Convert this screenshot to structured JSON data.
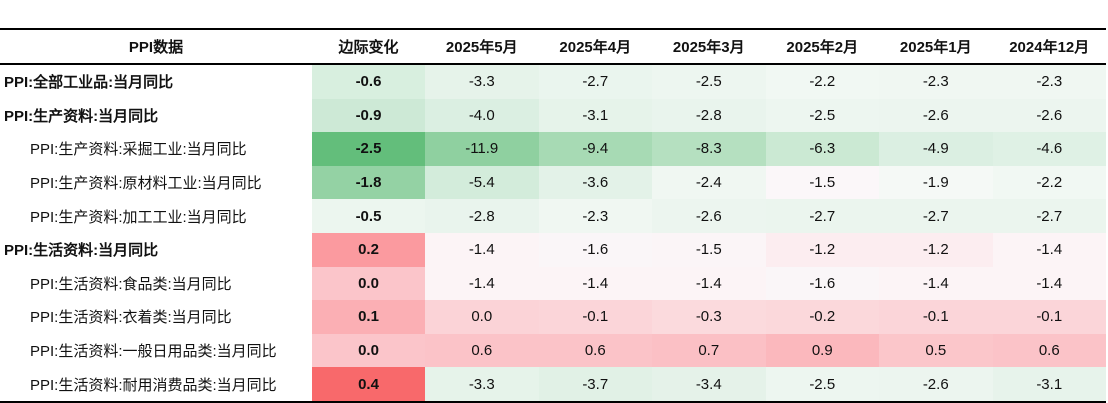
{
  "table": {
    "headers": [
      "PPI数据",
      "边际变化",
      "2025年5月",
      "2025年4月",
      "2025年3月",
      "2025年2月",
      "2025年1月",
      "2024年12月"
    ],
    "rows": [
      {
        "name": "PPI:全部工业品:当月同比",
        "bold": true,
        "indent": false,
        "change": "-0.6",
        "change_color": "#d8efdf",
        "values": [
          "-3.3",
          "-2.7",
          "-2.5",
          "-2.2",
          "-2.3",
          "-2.3"
        ],
        "colors": [
          "#e6f3ea",
          "#eaf5ee",
          "#edf6f0",
          "#f1f8f3",
          "#f0f7f2",
          "#f0f7f2"
        ]
      },
      {
        "name": "PPI:生产资料:当月同比",
        "bold": true,
        "indent": false,
        "change": "-0.9",
        "change_color": "#cde9d6",
        "values": [
          "-4.0",
          "-3.1",
          "-2.8",
          "-2.5",
          "-2.6",
          "-2.6"
        ],
        "colors": [
          "#dbefe2",
          "#e6f3ea",
          "#e9f4ed",
          "#edf6f0",
          "#ecf5ef",
          "#ecf5ef"
        ]
      },
      {
        "name": "PPI:生产资料:采掘工业:当月同比",
        "bold": false,
        "indent": true,
        "change": "-2.5",
        "change_color": "#63be7b",
        "values": [
          "-11.9",
          "-9.4",
          "-8.3",
          "-6.3",
          "-4.9",
          "-4.6"
        ],
        "colors": [
          "#8fd0a0",
          "#a7daB4",
          "#b5e0c0",
          "#cbe9d3",
          "#dbefe2",
          "#dff1e5"
        ]
      },
      {
        "name": "PPI:生产资料:原材料工业:当月同比",
        "bold": false,
        "indent": true,
        "change": "-1.8",
        "change_color": "#94d2a4",
        "values": [
          "-5.4",
          "-3.6",
          "-2.4",
          "-1.5",
          "-1.9",
          "-2.2"
        ],
        "colors": [
          "#d3ecdb",
          "#e3f2e8",
          "#f0f7f2",
          "#fbf7f9",
          "#f5f9f6",
          "#f1f8f3"
        ]
      },
      {
        "name": "PPI:生产资料:加工工业:当月同比",
        "bold": false,
        "indent": true,
        "change": "-0.5",
        "change_color": "#ecf6ef",
        "values": [
          "-2.8",
          "-2.3",
          "-2.6",
          "-2.7",
          "-2.7",
          "-2.7"
        ],
        "colors": [
          "#e9f4ed",
          "#f0f7f2",
          "#ecf5ef",
          "#ebf5ee",
          "#ebf5ee",
          "#ebf5ee"
        ]
      },
      {
        "name": "PPI:生活资料:当月同比",
        "bold": true,
        "indent": false,
        "change": "0.2",
        "change_color": "#fb9a9f",
        "values": [
          "-1.4",
          "-1.6",
          "-1.5",
          "-1.2",
          "-1.2",
          "-1.4"
        ],
        "colors": [
          "#fcf4f6",
          "#faf6f8",
          "#fbf5f7",
          "#fcedf0",
          "#fcedf0",
          "#fcf4f6"
        ]
      },
      {
        "name": "PPI:生活资料:食品类:当月同比",
        "bold": false,
        "indent": true,
        "change": "0.0",
        "change_color": "#fbc5ca",
        "values": [
          "-1.4",
          "-1.4",
          "-1.4",
          "-1.6",
          "-1.4",
          "-1.4"
        ],
        "colors": [
          "#fcf4f6",
          "#fcf4f6",
          "#fcf4f6",
          "#faf6f8",
          "#fcf4f6",
          "#fcf4f6"
        ]
      },
      {
        "name": "PPI:生活资料:衣着类:当月同比",
        "bold": false,
        "indent": true,
        "change": "0.1",
        "change_color": "#fbafb4",
        "values": [
          "0.0",
          "-0.1",
          "-0.3",
          "-0.2",
          "-0.1",
          "-0.1"
        ],
        "colors": [
          "#fbd3d7",
          "#fbd5d9",
          "#fbdadd",
          "#fbd8db",
          "#fbd5d9",
          "#fbd5d9"
        ]
      },
      {
        "name": "PPI:生活资料:一般日用品类:当月同比",
        "bold": false,
        "indent": true,
        "change": "0.0",
        "change_color": "#fbc5ca",
        "values": [
          "0.6",
          "0.6",
          "0.7",
          "0.9",
          "0.5",
          "0.6"
        ],
        "colors": [
          "#fbc3c8",
          "#fbc3c8",
          "#fbc0c5",
          "#fbb8bd",
          "#fbc6ca",
          "#fbc3c8"
        ]
      },
      {
        "name": "PPI:生活资料:耐用消费品类:当月同比",
        "bold": false,
        "indent": true,
        "change": "0.4",
        "change_color": "#f8696b",
        "values": [
          "-3.3",
          "-3.7",
          "-3.4",
          "-2.5",
          "-2.6",
          "-3.1"
        ],
        "colors": [
          "#e6f3ea",
          "#e1f1e6",
          "#e5f2e9",
          "#edf6f0",
          "#ecf5ef",
          "#e7f3eb"
        ]
      }
    ]
  }
}
